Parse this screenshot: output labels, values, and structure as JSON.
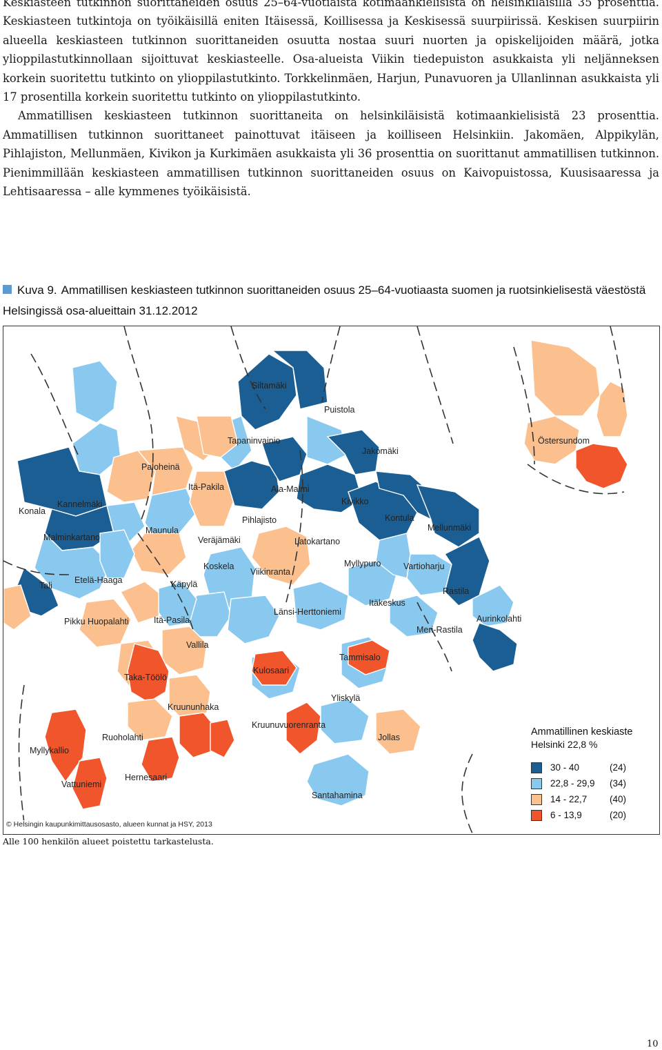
{
  "body_text": {
    "paragraphs": [
      "Keskiasteen tutkinnon suorittaneiden osuus 25–64-vuotiaista kotimaankielisistä on helsinkiläisillä 35 prosenttia. Keskiasteen tutkintoja on työikäisillä eniten Itäisessä, Koillisessa ja Keskisessä suurpiirissä. Keskisen suurpiirin alueella keskiasteen tutkinnon suorittaneiden osuutta nostaa suuri nuorten ja opiskelijoiden määrä, jotka ylioppilastutkinnollaan sijoittuvat keskiasteelle. Osa-alueista Viikin tiedepuiston asukkaista yli neljänneksen korkein suoritettu tutkinto on ylioppilastutkinto. Torkkelinmäen, Harjun, Punavuoren ja Ullanlinnan asukkaista yli 17 prosentilla korkein suoritettu tutkinto on ylioppilastutkinto.",
      "Ammatillisen keskiasteen tutkinnon suorittaneita on helsinkiläisistä kotimaankielisistä 23 prosenttia. Ammatillisen tutkinnon suorittaneet painottuvat itäiseen ja koilliseen Helsinkiin. Jakomäen, Alppikylän, Pihlajiston, Mellunmäen, Kivikon ja Kurkimäen asukkaista yli 36 prosenttia on suorittanut ammatillisen tutkinnon. Pienimmillään keskiasteen ammatillisen tutkinnon suorittaneiden osuus on Kaivopuistossa, Kuusisaaressa ja Lehtisaaressa – alle kymmenes työikäisistä."
    ]
  },
  "figure": {
    "number": "Kuva 9.",
    "title": "Ammatillisen keskiasteen tutkinnon suorittaneiden osuus 25–64-vuotiaasta suomen ja ruotsinkielisestä väestöstä Helsingissä osa-alueittain 31.12.2012"
  },
  "map": {
    "colors": {
      "class_30_40": "#1a5e93",
      "class_22_8_29_9": "#89c9ef",
      "class_14_22_7": "#fbc08e",
      "class_6_13_9": "#f0552b",
      "unclassified": "#ffffff",
      "border": "#ffffff",
      "district_line": "#333333"
    },
    "area_labels": [
      "Siltamäki",
      "Puistola",
      "Tapaninvainio",
      "Jakomäki",
      "Östersundom",
      "Paloheinä",
      "Itä-Pakila",
      "Ala-Malmi",
      "Konala",
      "Kannelmäki",
      "Kivikko",
      "Pihlajisto",
      "Kontula",
      "Mellunmäki",
      "Maunula",
      "Veräjämäki",
      "Latokartano",
      "Malminkartano",
      "Myllypuro",
      "Vartioharju",
      "Koskela",
      "Viikinranta",
      "Tali",
      "Etelä-Haaga",
      "Käpylä",
      "Rastila",
      "Itäkeskus",
      "Länsi-Herttoniemi",
      "Pikku Huopalahti",
      "Itä-Pasila",
      "Aurinkolahti",
      "Meri-Rastila",
      "Vallila",
      "Tammisalo",
      "Kulosaari",
      "Taka-Töölö",
      "Yliskylä",
      "Kruununhaka",
      "Kruunuvuorenranta",
      "Ruoholahti",
      "Jollas",
      "Myllykallio",
      "Hernesaari",
      "Vattuniemi",
      "Santahamina"
    ]
  },
  "legend": {
    "title": "Ammatillinen keskiaste",
    "subtitle": "Helsinki 22,8 %",
    "rows": [
      {
        "range": "30    - 40",
        "count": "(24)",
        "color": "#1a5e93"
      },
      {
        "range": "22,8 - 29,9",
        "count": "(34)",
        "color": "#89c9ef"
      },
      {
        "range": "14    - 22,7",
        "count": "(40)",
        "color": "#fbc08e"
      },
      {
        "range": "6    - 13,9",
        "count": "(20)",
        "color": "#f0552b"
      }
    ]
  },
  "copyright": "© Helsingin kaupunkimittausosasto, alueen kunnat ja HSY, 2013",
  "footnote": "Alle 100 henkilön alueet poistettu tarkastelusta.",
  "page_number": "10"
}
